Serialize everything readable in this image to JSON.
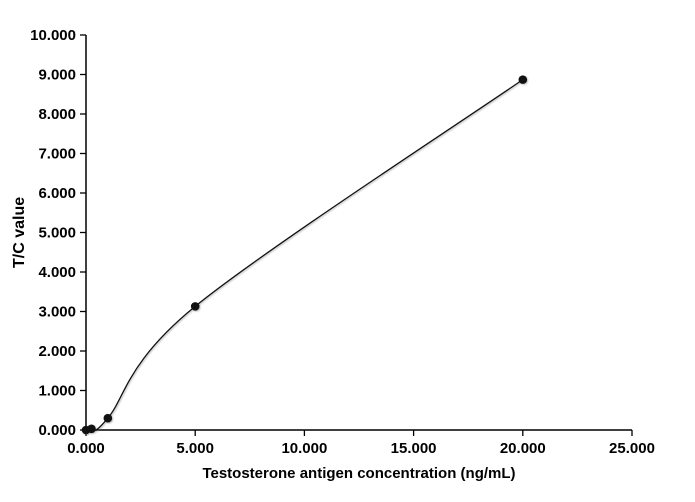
{
  "figure": {
    "background": "#ffffff",
    "axis_color": "#000000",
    "text_color": "#000000"
  },
  "chart_data": {
    "type": "line",
    "title": "",
    "xlabel": "Testosterone antigen concentration (ng/mL)",
    "ylabel": "T/C value",
    "series": [
      {
        "x": [
          0.0,
          0.25,
          1.0,
          5.0,
          20.0
        ],
        "y": [
          0.0,
          0.03,
          0.3,
          3.13,
          8.87
        ],
        "color": "#111111",
        "marker": "filled-circle",
        "smooth": true
      }
    ],
    "xlim": [
      0,
      25
    ],
    "ylim": [
      0,
      10
    ],
    "xticks": [
      0,
      5,
      10,
      15,
      20,
      25
    ],
    "yticks": [
      0,
      1,
      2,
      3,
      4,
      5,
      6,
      7,
      8,
      9,
      10
    ],
    "xtick_labels": [
      "0.000",
      "5.000",
      "10.000",
      "15.000",
      "20.000",
      "25.000"
    ],
    "ytick_labels": [
      "0.000",
      "1.000",
      "2.000",
      "3.000",
      "4.000",
      "5.000",
      "6.000",
      "7.000",
      "8.000",
      "9.000",
      "10.000"
    ],
    "grid": false,
    "legend_position": "none"
  }
}
